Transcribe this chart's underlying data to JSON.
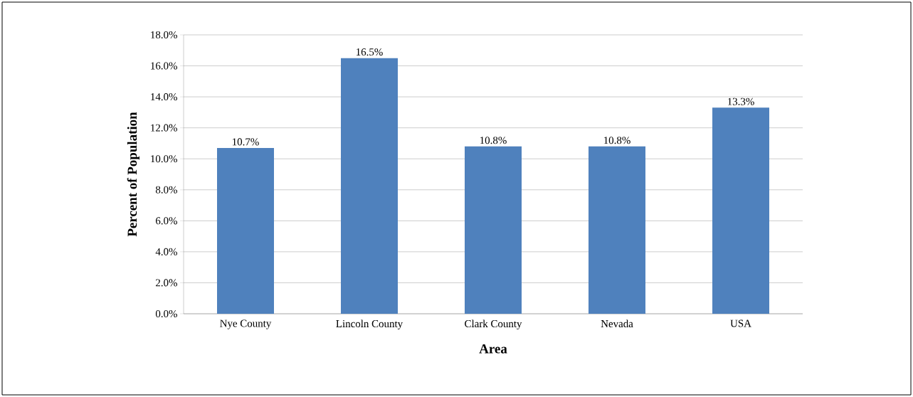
{
  "chart_data": {
    "type": "bar",
    "xlabel": "Area",
    "ylabel": "Percent of Population",
    "categories": [
      "Nye County",
      "Lincoln County",
      "Clark County",
      "Nevada",
      "USA"
    ],
    "values": [
      10.7,
      16.5,
      10.8,
      10.8,
      13.3
    ],
    "value_labels": [
      "10.7%",
      "16.5%",
      "10.8%",
      "10.8%",
      "13.3%"
    ],
    "color": "#4f81bd",
    "ylim": [
      0,
      18
    ],
    "yticks": [
      {
        "value": 0,
        "label": "0.0%"
      },
      {
        "value": 2,
        "label": "2.0%"
      },
      {
        "value": 4,
        "label": "4.0%"
      },
      {
        "value": 6,
        "label": "6.0%"
      },
      {
        "value": 8,
        "label": "8.0%"
      },
      {
        "value": 10,
        "label": "10.0%"
      },
      {
        "value": 12,
        "label": "12.0%"
      },
      {
        "value": 14,
        "label": "14.0%"
      },
      {
        "value": 16,
        "label": "16.0%"
      },
      {
        "value": 18,
        "label": "18.0%"
      }
    ],
    "grid": "y"
  }
}
